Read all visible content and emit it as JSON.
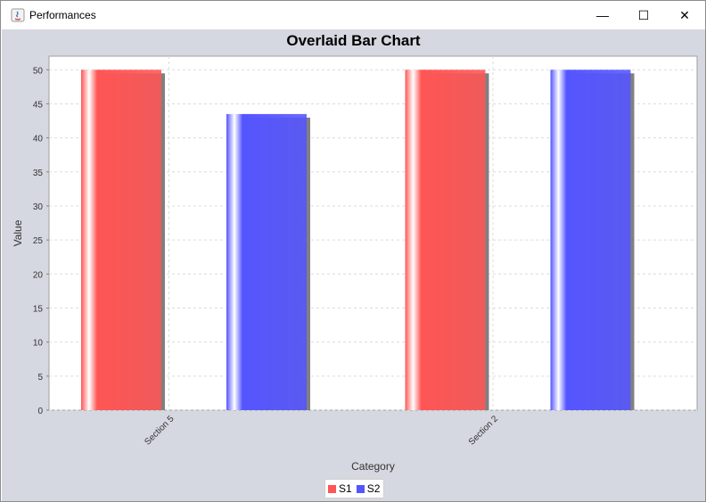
{
  "window": {
    "title": "Performances",
    "controls": {
      "minimize": "—",
      "maximize": "☐",
      "close": "✕"
    }
  },
  "chart_data": {
    "type": "bar",
    "title": "Overlaid Bar Chart",
    "xlabel": "Category",
    "ylabel": "Value",
    "categories": [
      "Section 5",
      "Section 2"
    ],
    "series": [
      {
        "name": "S1",
        "color": "#ff5555",
        "values": [
          50,
          50
        ]
      },
      {
        "name": "S2",
        "color": "#5555ff",
        "values": [
          43.5,
          50
        ]
      }
    ],
    "ylim": [
      0,
      52
    ],
    "yticks": [
      0,
      5,
      10,
      15,
      20,
      25,
      30,
      35,
      40,
      45,
      50
    ],
    "grid": true,
    "legend_position": "bottom-center"
  }
}
